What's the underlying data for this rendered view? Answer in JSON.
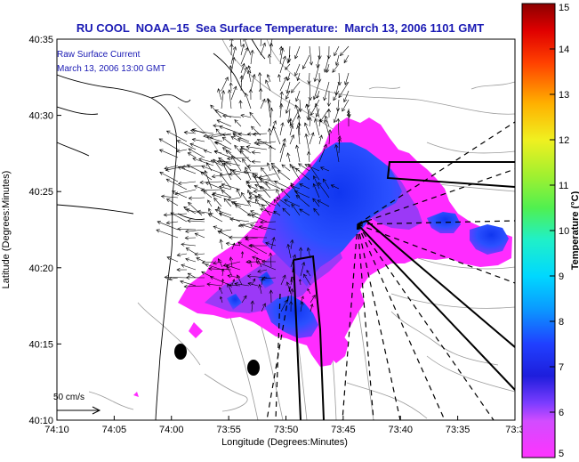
{
  "title": "RU COOL  NOAA–15  Sea Surface Temperature:  March 13, 2006 1101 GMT",
  "annotation": {
    "line1": "Raw Surface Current",
    "line2": "March 13, 2006 13:00 GMT"
  },
  "scale_label": "50 cm/s",
  "axes": {
    "xlabel": "Longitude (Degrees:Minutes)",
    "ylabel": "Latitude (Degrees:Minutes)",
    "x_ticks": [
      "74:10",
      "74:05",
      "74:00",
      "73:55",
      "73:50",
      "73:45",
      "73:40",
      "73:35",
      "73:3"
    ],
    "y_ticks": [
      "40:35",
      "40:30",
      "40:25",
      "40:20",
      "40:15",
      "40:10"
    ]
  },
  "colorbar": {
    "label": "Temperature (°C)",
    "ticks": [
      "15",
      "14",
      "13",
      "12",
      "11",
      "10",
      "9",
      "8",
      "7",
      "6",
      "5"
    ],
    "min": 5,
    "max": 15
  },
  "colors": {
    "title": "#1a1ab4",
    "sst_warm": "#1c3cff",
    "sst_cool": "#ff2cff"
  }
}
